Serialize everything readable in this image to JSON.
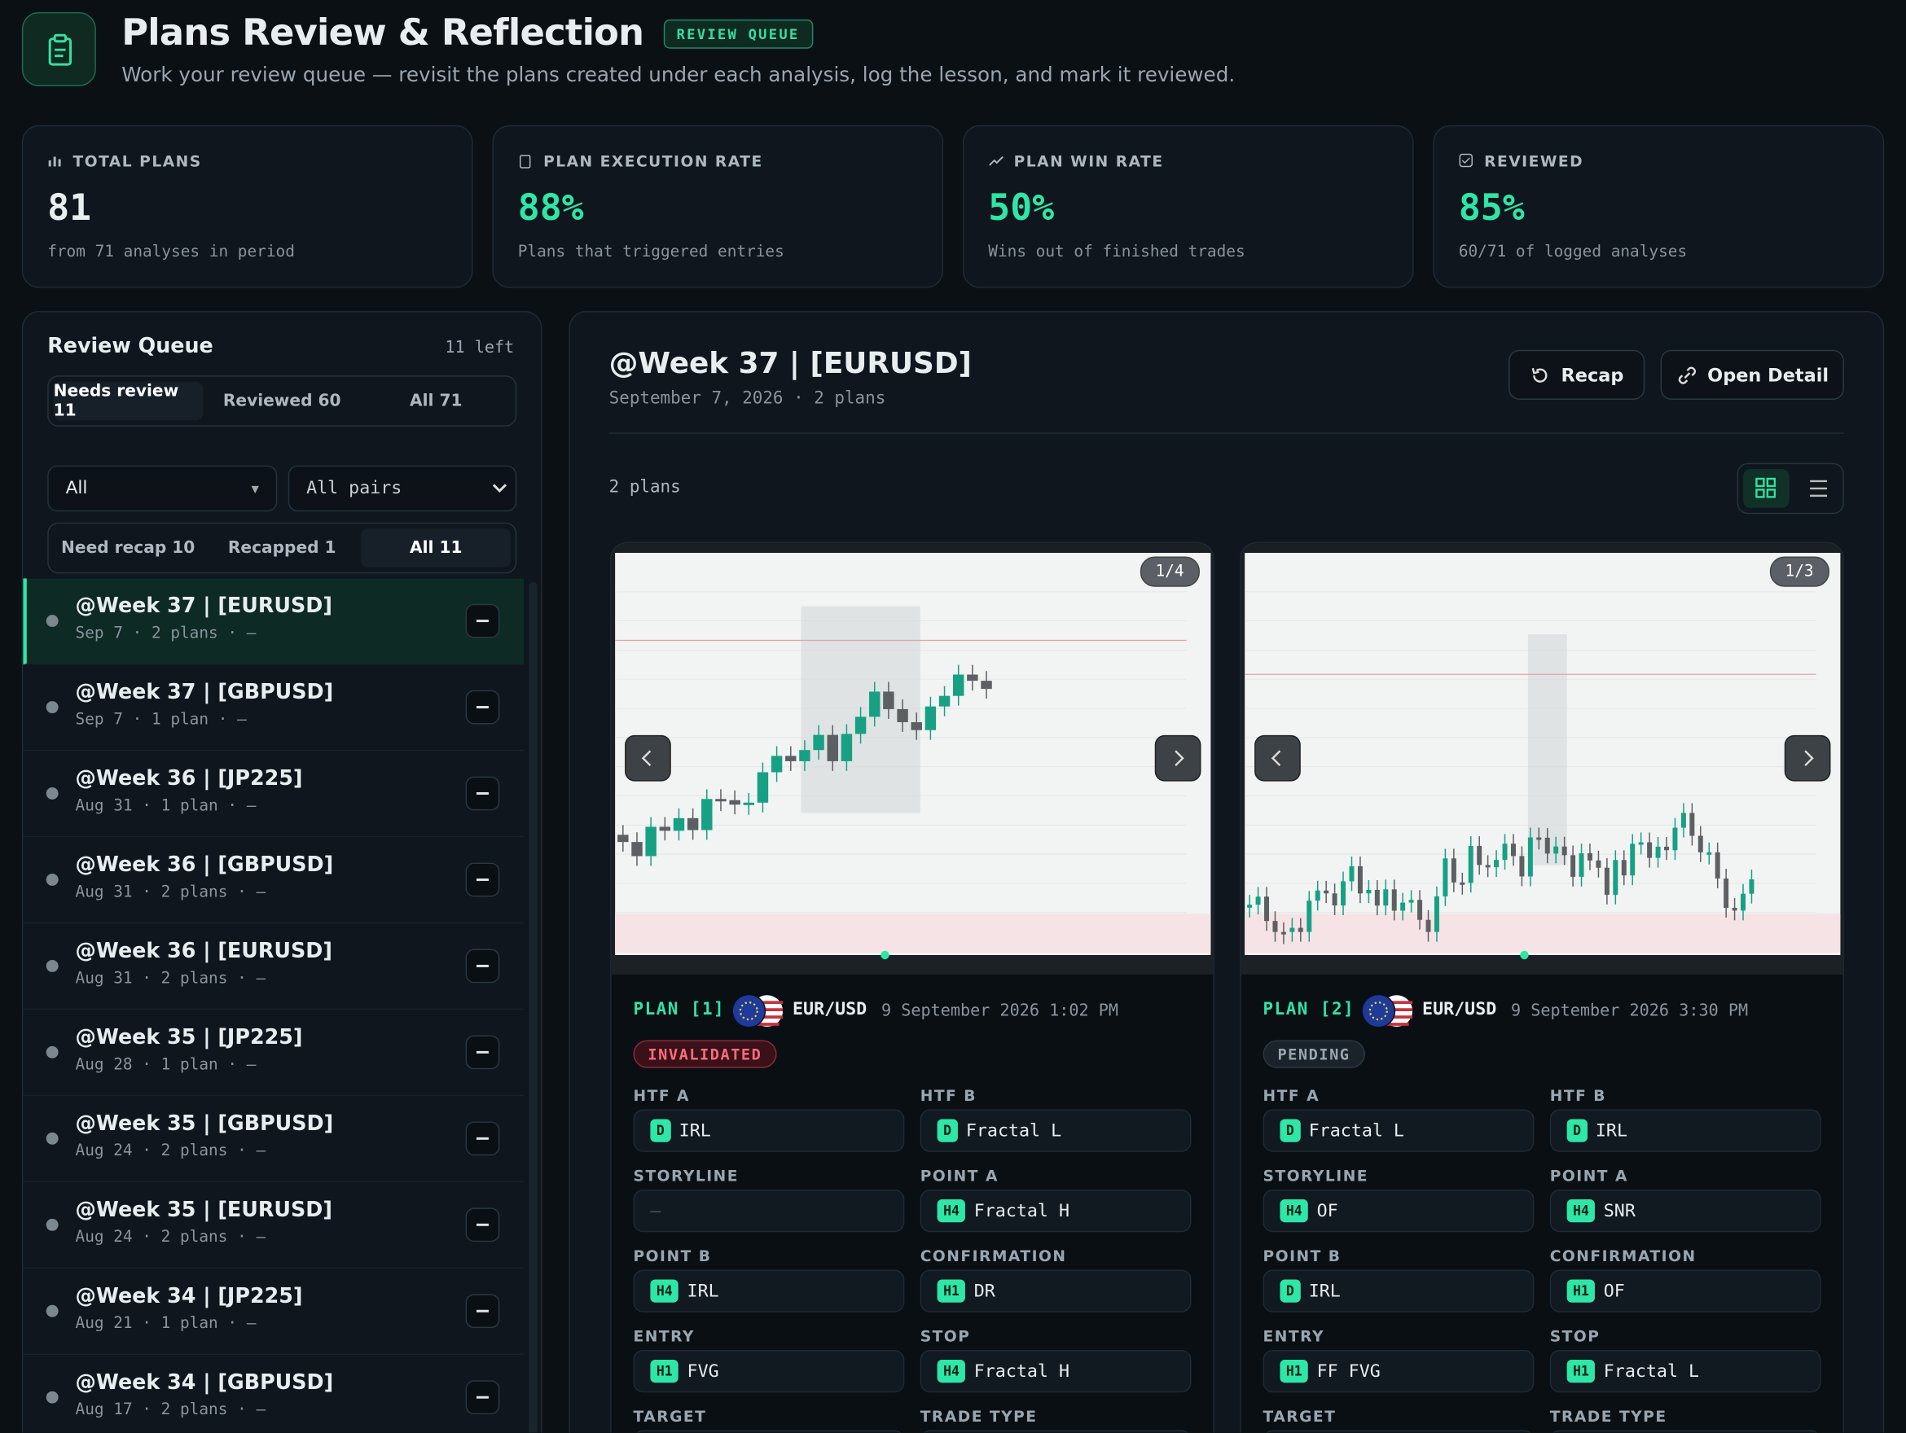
{
  "header": {
    "title": "Plans Review & Reflection",
    "badge": "REVIEW QUEUE",
    "subtitle": "Work your review queue — revisit the plans created under each analysis, log the lesson, and mark it reviewed."
  },
  "stats": [
    {
      "label": "TOTAL PLANS",
      "value": "81",
      "note": "from 71 analyses in period"
    },
    {
      "label": "PLAN EXECUTION RATE",
      "value": "88%",
      "note": "Plans that triggered entries"
    },
    {
      "label": "PLAN WIN RATE",
      "value": "50%",
      "note": "Wins out of finished trades"
    },
    {
      "label": "REVIEWED",
      "value": "85%",
      "note": "60/71 of logged analyses"
    }
  ],
  "queue": {
    "title": "Review Queue",
    "count": "11 left",
    "tabs": [
      "Needs review 11",
      "Reviewed 60",
      "All 71"
    ],
    "filters": [
      "All",
      "All pairs"
    ],
    "recap_tabs": [
      "Need recap 10",
      "Recapped 1",
      "All 11"
    ],
    "items": [
      {
        "title": "@Week 37 | [EURUSD]",
        "meta": "Sep 7 · 2 plans · —"
      },
      {
        "title": "@Week 37 | [GBPUSD]",
        "meta": "Sep 7 · 1 plan · —"
      },
      {
        "title": "@Week 36 | [JP225]",
        "meta": "Aug 31 · 1 plan · —"
      },
      {
        "title": "@Week 36 | [GBPUSD]",
        "meta": "Aug 31 · 2 plans · —"
      },
      {
        "title": "@Week 36 | [EURUSD]",
        "meta": "Aug 31 · 2 plans · —"
      },
      {
        "title": "@Week 35 | [JP225]",
        "meta": "Aug 28 · 1 plan · —"
      },
      {
        "title": "@Week 35 | [GBPUSD]",
        "meta": "Aug 24 · 2 plans · —"
      },
      {
        "title": "@Week 35 | [EURUSD]",
        "meta": "Aug 24 · 2 plans · —"
      },
      {
        "title": "@Week 34 | [JP225]",
        "meta": "Aug 21 · 1 plan · —"
      },
      {
        "title": "@Week 34 | [GBPUSD]",
        "meta": "Aug 17 · 2 plans · —"
      }
    ]
  },
  "detail": {
    "title": "@Week 37 | [EURUSD]",
    "meta": "September 7, 2026 · 2 plans",
    "actions": [
      "Recap",
      "Open Detail"
    ],
    "count": "2 plans",
    "plans": [
      {
        "label": "PLAN [1]",
        "pair": "EUR/USD",
        "time": "9 September 2026 1:02 PM",
        "status": "INVALIDATED",
        "counter": "1/4",
        "fields": [
          {
            "name": "HTF A",
            "tf": "D",
            "value": "IRL"
          },
          {
            "name": "HTF B",
            "tf": "D",
            "value": "Fractal L"
          },
          {
            "name": "STORYLINE",
            "value": "—"
          },
          {
            "name": "POINT A",
            "tf": "H4",
            "value": "Fractal H"
          },
          {
            "name": "POINT B",
            "tf": "H4",
            "value": "IRL"
          },
          {
            "name": "CONFIRMATION",
            "tf": "H1",
            "value": "DR"
          },
          {
            "name": "ENTRY",
            "tf": "H1",
            "value": "FVG"
          },
          {
            "name": "STOP",
            "tf": "H4",
            "value": "Fractal H"
          },
          {
            "name": "TARGET"
          },
          {
            "name": "TRADE TYPE"
          }
        ]
      },
      {
        "label": "PLAN [2]",
        "pair": "EUR/USD",
        "time": "9 September 2026 3:30 PM",
        "status": "PENDING",
        "counter": "1/3",
        "fields": [
          {
            "name": "HTF A",
            "tf": "D",
            "value": "Fractal L"
          },
          {
            "name": "HTF B",
            "tf": "D",
            "value": "IRL"
          },
          {
            "name": "STORYLINE",
            "tf": "H4",
            "value": "OF"
          },
          {
            "name": "POINT A",
            "tf": "H4",
            "value": "SNR"
          },
          {
            "name": "POINT B",
            "tf": "D",
            "value": "IRL"
          },
          {
            "name": "CONFIRMATION",
            "tf": "H1",
            "value": "OF"
          },
          {
            "name": "ENTRY",
            "tf": "H1",
            "value": "FF FVG"
          },
          {
            "name": "STOP",
            "tf": "H1",
            "value": "Fractal L"
          },
          {
            "name": "TARGET"
          },
          {
            "name": "TRADE TYPE"
          }
        ]
      }
    ]
  }
}
